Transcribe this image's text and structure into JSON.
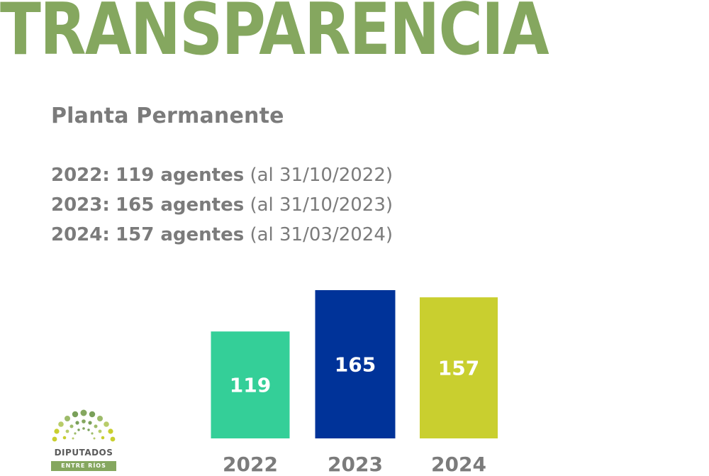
{
  "header": {
    "title": "TRANSPARENCIA"
  },
  "section": {
    "title": "Planta Permanente"
  },
  "stats": [
    {
      "year": "2022:",
      "value": "119 agentes",
      "note": "(al 31/10/2022)"
    },
    {
      "year": "2023:",
      "value": "165 agentes",
      "note": "(al 31/10/2023)"
    },
    {
      "year": "2024:",
      "value": "157 agentes",
      "note": "(al 31/03/2024)"
    }
  ],
  "chart_data": {
    "type": "bar",
    "categories": [
      "2022",
      "2023",
      "2024"
    ],
    "values": [
      119,
      165,
      157
    ],
    "colors": [
      "#34cf98",
      "#003399",
      "#c9cf2f"
    ],
    "title": "",
    "xlabel": "",
    "ylabel": "",
    "ylim": [
      0,
      165
    ],
    "grid": false,
    "data_labels": true
  },
  "logo": {
    "name": "DIPUTADOS",
    "subtitle": "ENTRE RÍOS"
  },
  "colors": {
    "accent_green": "#85a75f",
    "text_gray": "#7b7b7b"
  }
}
